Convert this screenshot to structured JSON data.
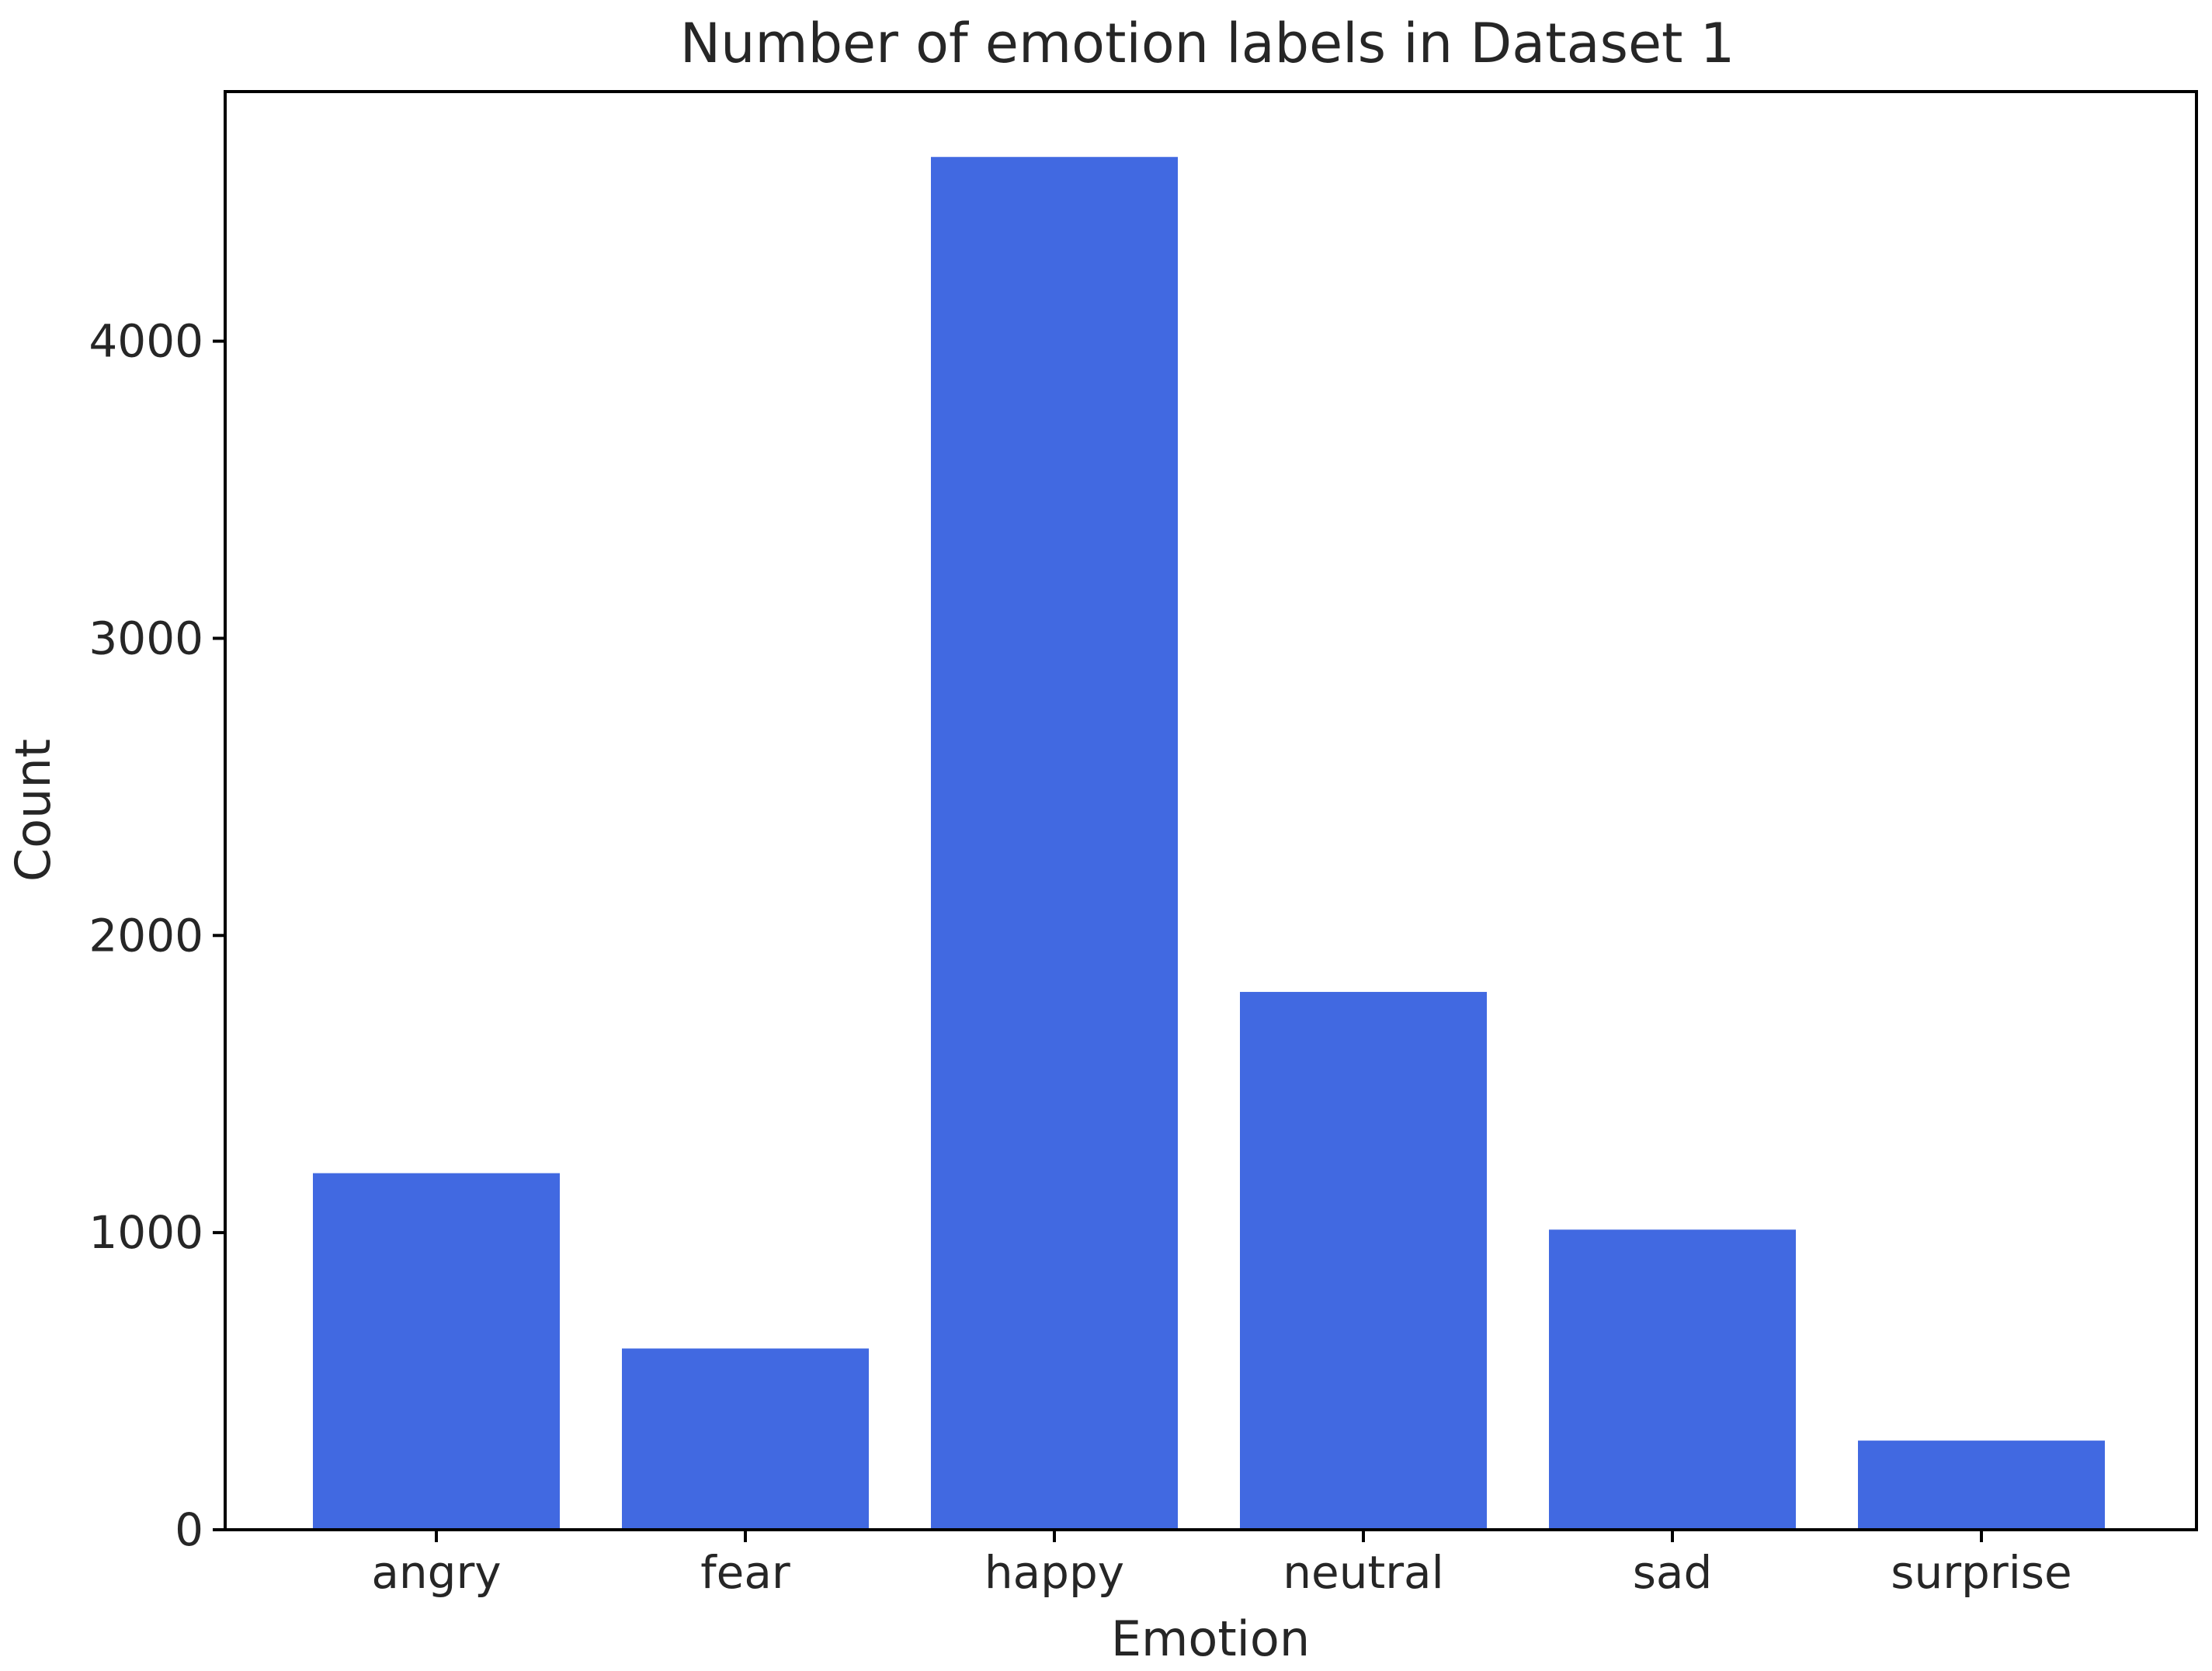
{
  "chart_data": {
    "type": "bar",
    "title": "Number of emotion labels in Dataset 1",
    "xlabel": "Emotion",
    "ylabel": "Count",
    "categories": [
      "angry",
      "fear",
      "happy",
      "neutral",
      "sad",
      "surprise"
    ],
    "values": [
      1200,
      610,
      4620,
      1810,
      1010,
      300
    ],
    "ylim": [
      0,
      4840
    ],
    "yticks": [
      0,
      1000,
      2000,
      3000,
      4000
    ],
    "ytick_labels": [
      "0",
      "1000",
      "2000",
      "3000",
      "4000"
    ],
    "bar_color": "#4169E1",
    "grid": false,
    "legend": false
  }
}
